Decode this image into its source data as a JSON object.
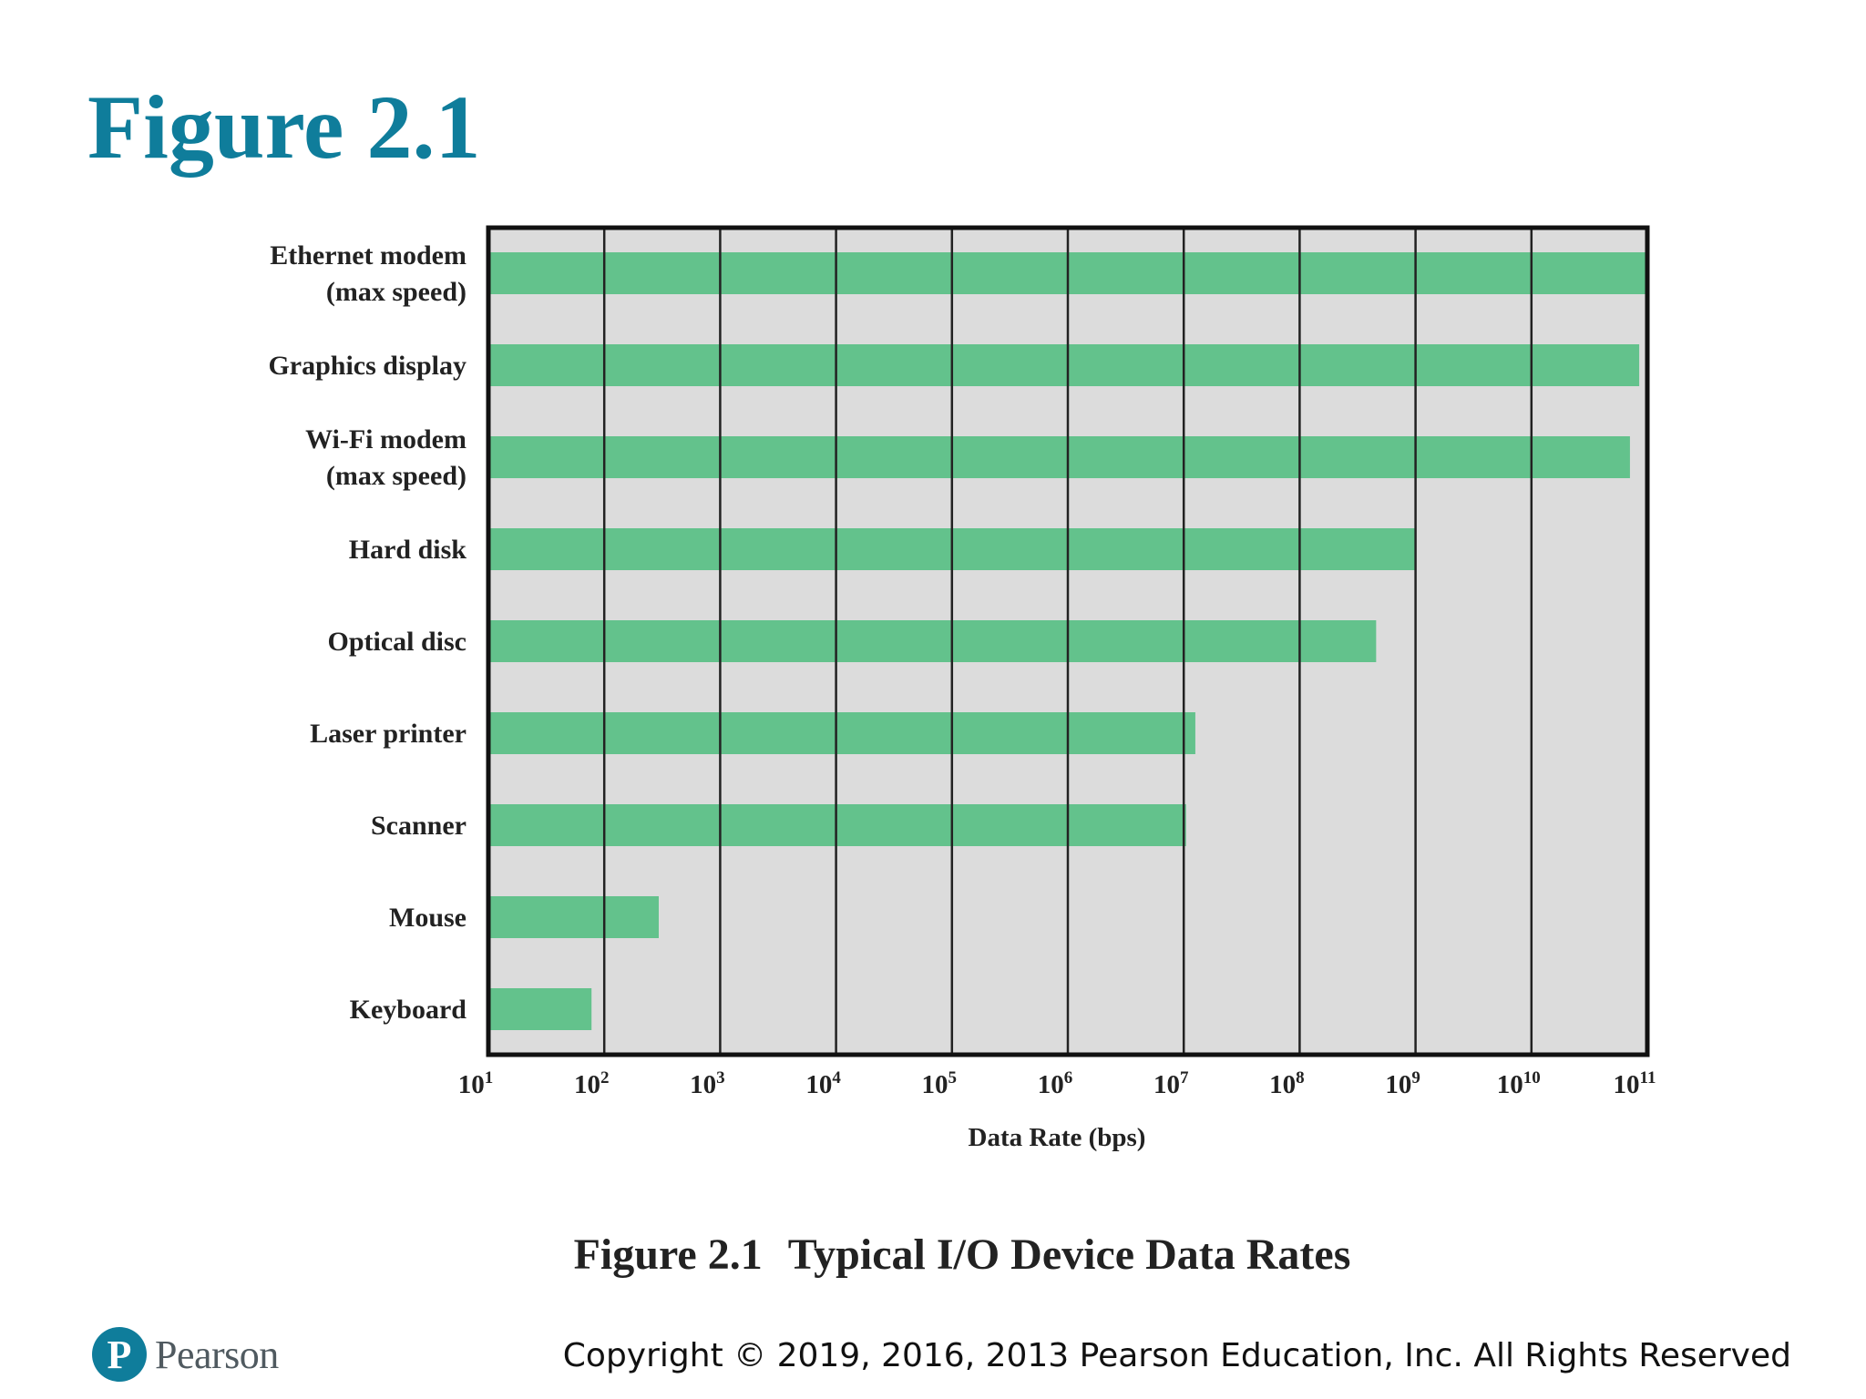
{
  "slide": {
    "title": "Figure 2.1",
    "caption_number": "Figure 2.1",
    "caption_title": "Typical I/O Device Data Rates"
  },
  "footer": {
    "brand": "Pearson",
    "logo_letter": "P",
    "copyright": "Copyright © 2019, 2016, 2013 Pearson Education, Inc. All Rights Reserved"
  },
  "colors": {
    "title": "#0f7d9b",
    "bar": "#63c28c",
    "plot_bg": "#dcdcdc",
    "logo": "#0f7d9b"
  },
  "chart_data": {
    "type": "bar",
    "orientation": "horizontal",
    "xscale": "log10",
    "xlim_exp": [
      1,
      11
    ],
    "xlabel": "Data Rate (bps)",
    "ylabel": "",
    "grid": true,
    "tick_exponents": [
      1,
      2,
      3,
      4,
      5,
      6,
      7,
      8,
      9,
      10,
      11
    ],
    "categories": [
      [
        "Ethernet modem",
        "(max speed)"
      ],
      [
        "Graphics display"
      ],
      [
        "Wi-Fi modem",
        "(max speed)"
      ],
      [
        "Hard disk"
      ],
      [
        "Optical disc"
      ],
      [
        "Laser printer"
      ],
      [
        "Scanner"
      ],
      [
        "Mouse"
      ],
      [
        "Keyboard"
      ]
    ],
    "log_values": [
      11,
      10.93,
      10.85,
      9.0,
      8.66,
      7.1,
      7.02,
      2.47,
      1.89
    ]
  }
}
